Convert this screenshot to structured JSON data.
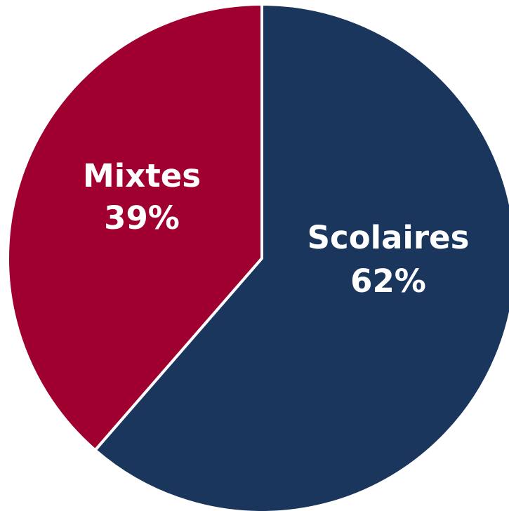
{
  "chart_data": {
    "type": "pie",
    "slices": [
      {
        "label": "Scolaires",
        "value_label": "62%",
        "value": 62,
        "color": "#1b365d"
      },
      {
        "label": "Mixtes",
        "value_label": "39%",
        "value": 39,
        "color": "#a00030"
      }
    ],
    "start_angle_deg": 0,
    "direction": "clockwise",
    "edge_color": "#ffffff",
    "legend": "none"
  }
}
